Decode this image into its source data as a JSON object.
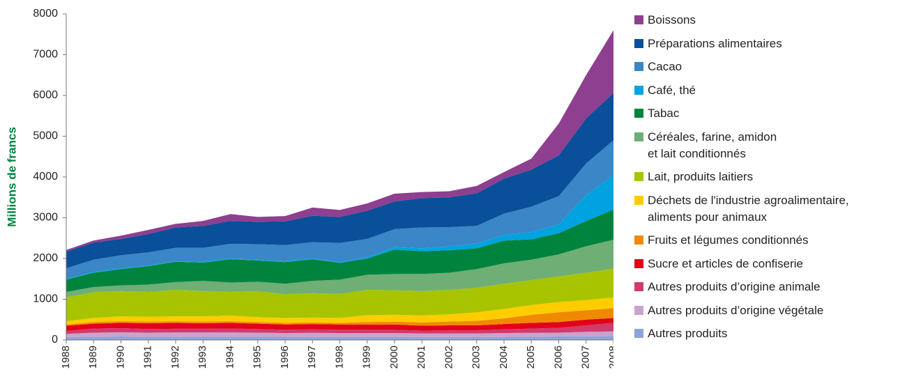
{
  "chart_data": {
    "type": "stacked-area",
    "y_label": "Millions de francs",
    "categories": [
      "1988",
      "1989",
      "1990",
      "1991",
      "1992",
      "1993",
      "1994",
      "1995",
      "1996",
      "1997",
      "1998",
      "1999",
      "2000",
      "2001",
      "2002",
      "2003",
      "2004",
      "2005",
      "2006",
      "2007",
      "2008"
    ],
    "ylim": [
      0,
      8000
    ],
    "yticks": [
      0,
      1000,
      2000,
      3000,
      4000,
      5000,
      6000,
      7000,
      8000
    ],
    "series": [
      {
        "name": "Boissons",
        "color": "#8e3f8f",
        "values": [
          40,
          50,
          80,
          100,
          90,
          120,
          170,
          120,
          130,
          200,
          170,
          180,
          190,
          150,
          150,
          180,
          160,
          270,
          780,
          1060,
          1540
        ]
      },
      {
        "name": "Préparations alimentaires",
        "color": "#0a4f9a",
        "values": [
          410,
          420,
          400,
          450,
          500,
          540,
          560,
          550,
          580,
          650,
          640,
          690,
          680,
          720,
          730,
          800,
          860,
          910,
          1000,
          1110,
          1160
        ]
      },
      {
        "name": "Cacao",
        "color": "#3b86c6",
        "values": [
          260,
          300,
          320,
          320,
          330,
          340,
          360,
          380,
          400,
          400,
          470,
          450,
          440,
          510,
          470,
          430,
          520,
          620,
          690,
          780,
          850
        ]
      },
      {
        "name": "Café, thé",
        "color": "#00a3e0",
        "values": [
          20,
          20,
          20,
          20,
          10,
          20,
          20,
          20,
          20,
          20,
          20,
          30,
          60,
          70,
          100,
          120,
          140,
          180,
          220,
          630,
          850
        ]
      },
      {
        "name": "Tabac",
        "color": "#00843d",
        "values": [
          300,
          350,
          400,
          450,
          500,
          450,
          570,
          520,
          530,
          530,
          410,
          400,
          600,
          560,
          550,
          510,
          560,
          500,
          520,
          620,
          740
        ]
      },
      {
        "name": "Céréales, farine, amidon\net lait conditionnés",
        "color": "#6fae75",
        "values": [
          130,
          130,
          140,
          180,
          190,
          250,
          230,
          230,
          260,
          300,
          350,
          370,
          400,
          420,
          420,
          460,
          500,
          500,
          540,
          650,
          710
        ]
      },
      {
        "name": "Lait, produits laitiers",
        "color": "#a8c400",
        "values": [
          590,
          630,
          620,
          610,
          650,
          620,
          580,
          640,
          580,
          600,
          590,
          620,
          600,
          600,
          600,
          600,
          620,
          610,
          630,
          670,
          710
        ]
      },
      {
        "name": "Déchets de l'industrie agroalimentaire,\naliments pour animaux",
        "color": "#ffcc00",
        "values": [
          80,
          100,
          120,
          120,
          120,
          130,
          140,
          120,
          120,
          120,
          120,
          170,
          170,
          170,
          180,
          210,
          230,
          240,
          250,
          250,
          260
        ]
      },
      {
        "name": "Fruits et légumes conditionnés",
        "color": "#ef8a00",
        "values": [
          30,
          40,
          40,
          40,
          40,
          40,
          40,
          40,
          40,
          40,
          40,
          60,
          70,
          80,
          90,
          110,
          140,
          200,
          240,
          230,
          240
        ]
      },
      {
        "name": "Sucre et articles de confiserie",
        "color": "#e2001a",
        "values": [
          130,
          120,
          130,
          140,
          145,
          135,
          140,
          130,
          130,
          130,
          130,
          130,
          130,
          120,
          125,
          120,
          130,
          140,
          140,
          140,
          120
        ]
      },
      {
        "name": "Autres produits d’origine animale",
        "color": "#d13a6c",
        "values": [
          70,
          100,
          100,
          90,
          90,
          90,
          95,
          90,
          80,
          85,
          80,
          80,
          80,
          70,
          75,
          80,
          90,
          105,
          120,
          160,
          210
        ]
      },
      {
        "name": "Autres produits d’origine végétale",
        "color": "#c9a3cc",
        "values": [
          80,
          100,
          105,
          100,
          105,
          105,
          105,
          100,
          95,
          100,
          95,
          95,
          95,
          90,
          90,
          90,
          95,
          95,
          95,
          110,
          115
        ]
      },
      {
        "name": "Autres produits",
        "color": "#8fa3d8",
        "values": [
          70,
          80,
          85,
          80,
          80,
          80,
          80,
          80,
          75,
          75,
          75,
          75,
          75,
          70,
          70,
          70,
          75,
          80,
          85,
          90,
          95
        ]
      }
    ]
  }
}
